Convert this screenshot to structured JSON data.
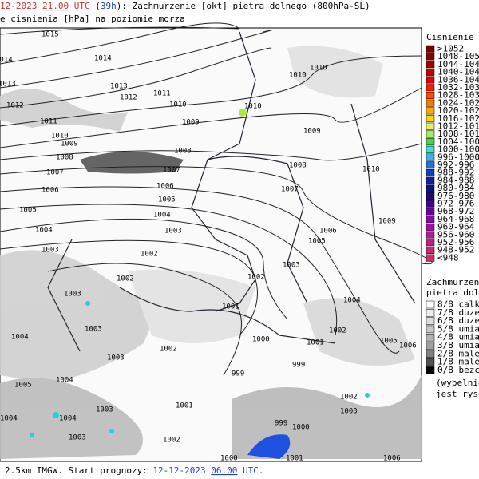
{
  "header": {
    "date": "12-2023",
    "time": "21.00",
    "time_zone": "UTC",
    "lead_open": "(",
    "lead": "39h",
    "lead_close": "):",
    "title": "Zachmurzenie [okt] pietra dolnego (800hPa-SL)",
    "subtitle": "e cisnienia [hPa] na poziomie morza"
  },
  "footer": {
    "text": "2.5km IMGW. Start prognozy:",
    "date": "12-12-2023",
    "time": "06.00",
    "time_zone": "UTC."
  },
  "pressure_legend": {
    "title": "Cisnienie [hP",
    "items": [
      {
        "label": ">1052",
        "color": "#7a0000"
      },
      {
        "label": "1048-105",
        "color": "#8e0000"
      },
      {
        "label": "1044-104",
        "color": "#a80000"
      },
      {
        "label": "1040-104",
        "color": "#c40000"
      },
      {
        "label": "1036-104",
        "color": "#e00000"
      },
      {
        "label": "1032-103",
        "color": "#ff1a00"
      },
      {
        "label": "1028-103",
        "color": "#ff4a00"
      },
      {
        "label": "1024-102",
        "color": "#ff7a00"
      },
      {
        "label": "1020-102",
        "color": "#ffa800"
      },
      {
        "label": "1016-102",
        "color": "#ffd400"
      },
      {
        "label": "1012-101",
        "color": "#e8f060"
      },
      {
        "label": "1008-101",
        "color": "#a8e860"
      },
      {
        "label": "1004-100",
        "color": "#50d050"
      },
      {
        "label": "1000-100",
        "color": "#40e0d0"
      },
      {
        "label": "996-1000",
        "color": "#40b0f0"
      },
      {
        "label": "992-996",
        "color": "#2070e0"
      },
      {
        "label": "988-992",
        "color": "#1040c0"
      },
      {
        "label": "984-988",
        "color": "#1020a0"
      },
      {
        "label": "980-984",
        "color": "#101080"
      },
      {
        "label": "976-980",
        "color": "#200870"
      },
      {
        "label": "972-976",
        "color": "#400880"
      },
      {
        "label": "968-972",
        "color": "#600890"
      },
      {
        "label": "964-968",
        "color": "#8010a0"
      },
      {
        "label": "960-964",
        "color": "#a010a8"
      },
      {
        "label": "956-960",
        "color": "#b81890"
      },
      {
        "label": "952-956",
        "color": "#c02080"
      },
      {
        "label": "948-952",
        "color": "#c82870"
      },
      {
        "label": "<948",
        "color": "#d03060"
      }
    ]
  },
  "cloud_legend": {
    "title": [
      "Zachmurzenie",
      "pietra dolneg"
    ],
    "items": [
      {
        "label": "8/8 calkow",
        "color": "#ffffff"
      },
      {
        "label": "7/8 duze",
        "color": "#eeeeee"
      },
      {
        "label": "6/8 duze",
        "color": "#dddddd"
      },
      {
        "label": "5/8 umiar",
        "color": "#c8c8c8"
      },
      {
        "label": "4/8 umiar",
        "color": "#b4b4b4"
      },
      {
        "label": "3/8 umiar",
        "color": "#a0a0a0"
      },
      {
        "label": "2/8 male",
        "color": "#808080"
      },
      {
        "label": "1/8 male",
        "color": "#505050"
      },
      {
        "label": "0/8 bezch",
        "color": "#000000"
      }
    ],
    "note": [
      "(wypelnieni",
      "jest rysowe"
    ]
  },
  "map": {
    "isobar_labels": [
      1015,
      1014,
      1014,
      1013,
      1013,
      1012,
      1012,
      1011,
      1010,
      1010,
      1010,
      1010,
      1011,
      1010,
      1009,
      1009,
      1009,
      1008,
      1008,
      1008,
      1007,
      1007,
      1007,
      1006,
      1006,
      1005,
      1005,
      1004,
      1004,
      1003,
      1003,
      1002,
      1002,
      1006,
      1005,
      1003,
      1002,
      1001,
      1003,
      1003,
      1004,
      1000,
      1002,
      1004,
      1009,
      1010,
      1005,
      1006,
      1002,
      1003,
      999,
      999,
      1001,
      1001,
      1002,
      1000,
      1001,
      1006,
      1000,
      999,
      1002,
      1003,
      1004,
      1004,
      1003,
      1003,
      1005,
      1004
    ]
  }
}
